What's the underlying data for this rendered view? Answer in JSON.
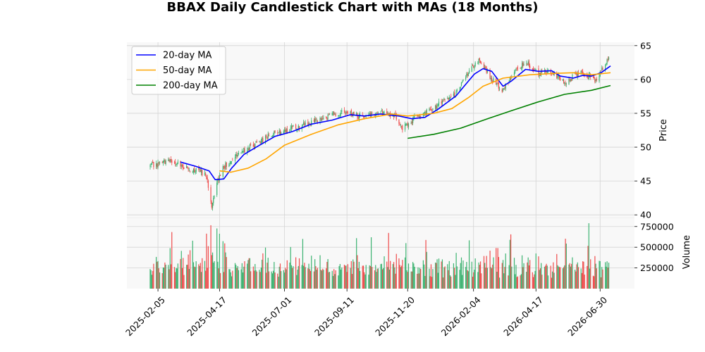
{
  "chart_data": {
    "type": "candlestick",
    "title": "BBAX Daily Candlestick Chart with MAs (18 Months)",
    "price_panel": {
      "ylabel": "Price",
      "ylim": [
        39.5,
        65.5
      ],
      "yticks": [
        40,
        45,
        50,
        55,
        60,
        65
      ],
      "grid": true,
      "legend_position": "upper-left"
    },
    "volume_panel": {
      "ylabel": "Volume",
      "ylim": [
        0,
        850000
      ],
      "yticks": [
        250000,
        500000,
        750000
      ],
      "ytick_labels": [
        "250000",
        "500000",
        "750000"
      ],
      "grid": true
    },
    "x_axis": {
      "start_date": "2025-01-27",
      "end_date": "2026-07-12",
      "ticks": [
        "2025-02-05",
        "2025-04-17",
        "2025-07-01",
        "2025-09-11",
        "2025-11-20",
        "2026-02-04",
        "2026-04-17",
        "2026-06-30"
      ]
    },
    "colors": {
      "up": "#3cb371",
      "down": "#ef4b4b",
      "ma20": "#0000ff",
      "ma50": "#ffa500",
      "ma200": "#008000"
    },
    "price_path": [
      [
        "2025-01-27",
        47.2
      ],
      [
        "2025-02-20",
        48.0
      ],
      [
        "2025-03-05",
        47.2
      ],
      [
        "2025-03-25",
        46.4
      ],
      [
        "2025-04-02",
        45.8
      ],
      [
        "2025-04-08",
        41.5
      ],
      [
        "2025-04-13",
        44.2
      ],
      [
        "2025-04-20",
        46.8
      ],
      [
        "2025-05-05",
        48.8
      ],
      [
        "2025-05-25",
        50.2
      ],
      [
        "2025-06-15",
        51.8
      ],
      [
        "2025-07-05",
        52.6
      ],
      [
        "2025-07-25",
        53.4
      ],
      [
        "2025-08-20",
        54.4
      ],
      [
        "2025-09-05",
        55.2
      ],
      [
        "2025-09-25",
        54.6
      ],
      [
        "2025-10-15",
        55.2
      ],
      [
        "2025-11-05",
        54.5
      ],
      [
        "2025-11-15",
        52.8
      ],
      [
        "2025-11-28",
        54.2
      ],
      [
        "2025-12-20",
        55.8
      ],
      [
        "2026-01-15",
        58.0
      ],
      [
        "2026-02-01",
        61.6
      ],
      [
        "2026-02-10",
        62.8
      ],
      [
        "2026-02-25",
        60.0
      ],
      [
        "2026-03-10",
        58.5
      ],
      [
        "2026-03-25",
        61.5
      ],
      [
        "2026-04-05",
        62.6
      ],
      [
        "2026-04-20",
        61.0
      ],
      [
        "2026-05-05",
        61.2
      ],
      [
        "2026-05-20",
        59.5
      ],
      [
        "2026-06-05",
        61.0
      ],
      [
        "2026-06-25",
        60.0
      ],
      [
        "2026-07-05",
        62.0
      ],
      [
        "2026-07-12",
        64.0
      ]
    ],
    "series": [
      {
        "name": "20-day MA",
        "x": [
          "2025-03-03",
          "2025-03-20",
          "2025-04-05",
          "2025-04-12",
          "2025-04-22",
          "2025-05-01",
          "2025-05-15",
          "2025-06-01",
          "2025-06-20",
          "2025-07-10",
          "2025-08-01",
          "2025-08-25",
          "2025-09-15",
          "2025-10-01",
          "2025-10-20",
          "2025-11-10",
          "2025-11-25",
          "2025-12-10",
          "2025-12-25",
          "2026-01-15",
          "2026-01-28",
          "2026-02-05",
          "2026-02-15",
          "2026-02-25",
          "2026-03-10",
          "2026-03-20",
          "2026-04-05",
          "2026-04-20",
          "2026-05-05",
          "2026-05-15",
          "2026-05-30",
          "2026-06-10",
          "2026-06-20",
          "2026-07-01",
          "2026-07-12"
        ],
        "values": [
          47.8,
          47.2,
          46.5,
          45.2,
          45.3,
          46.9,
          48.9,
          50.2,
          51.6,
          52.3,
          53.4,
          54.0,
          54.8,
          54.6,
          54.9,
          54.6,
          54.2,
          54.4,
          55.6,
          57.6,
          59.6,
          60.8,
          61.6,
          61.2,
          59.0,
          59.8,
          61.5,
          61.2,
          61.3,
          60.5,
          60.2,
          60.6,
          60.5,
          61.0,
          62.0
        ]
      },
      {
        "name": "50-day MA",
        "x": [
          "2025-04-17",
          "2025-04-30",
          "2025-05-20",
          "2025-06-10",
          "2025-07-01",
          "2025-08-01",
          "2025-09-01",
          "2025-10-01",
          "2025-11-01",
          "2025-11-20",
          "2025-12-20",
          "2026-01-10",
          "2026-01-30",
          "2026-02-15",
          "2026-03-10",
          "2026-04-10",
          "2026-05-10",
          "2026-05-30",
          "2026-06-20",
          "2026-07-12"
        ],
        "values": [
          46.5,
          46.3,
          46.9,
          48.3,
          50.3,
          51.9,
          53.3,
          54.2,
          54.9,
          54.6,
          55.0,
          55.7,
          57.4,
          59.0,
          60.2,
          60.7,
          60.9,
          61.0,
          60.7,
          61.0
        ]
      },
      {
        "name": "200-day MA",
        "x": [
          "2025-11-20",
          "2025-12-20",
          "2026-01-20",
          "2026-02-20",
          "2026-03-20",
          "2026-04-20",
          "2026-05-20",
          "2026-06-20",
          "2026-07-12"
        ],
        "values": [
          51.3,
          51.9,
          52.8,
          54.2,
          55.4,
          56.7,
          57.8,
          58.4,
          59.1
        ]
      }
    ]
  }
}
